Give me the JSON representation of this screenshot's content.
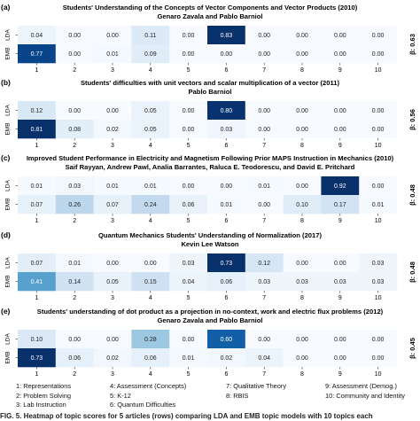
{
  "panels": [
    {
      "letter": "(a)",
      "title": "Students' Understanding of the Concepts of Vector Components and Vector Products (2010)",
      "authors": "Genaro Zavala and Pablo Barniol",
      "beta": "β: 0.63"
    },
    {
      "letter": "(b)",
      "title": "Students' difficulties with unit vectors and scalar multiplication of a vector (2011)",
      "authors": "Pablo Barniol",
      "beta": "β: 0.56"
    },
    {
      "letter": "(c)",
      "title": "Improved Student Performance in Electricity and Magnetism Following Prior MAPS Instruction in Mechanics (2010)",
      "authors": "Saif Rayyan, Andrew Pawl, Analia Barrantes, Raluca E. Teodorescu, and David E. Pritchard",
      "beta": "β: 0.48"
    },
    {
      "letter": "(d)",
      "title": "Quantum Mechanics Students' Understanding of Normalization (2017)",
      "authors": "Kevin Lee Watson",
      "beta": "β: 0.48"
    },
    {
      "letter": "(e)",
      "title": "Students' understanding of dot product as a projection in no-context, work and electric flux problems (2012)",
      "authors": "Genaro Zavala and Pablo Barniol",
      "beta": "β: 0.45"
    }
  ],
  "legend": [
    [
      "1: Representations",
      "2: Problem Solving",
      "3: Lab Instruction"
    ],
    [
      "4: Assessment (Concepts)",
      "5: K-12",
      "6: Quantum Difficulties"
    ],
    [
      "7: Qualitative Theory",
      "8: RBIS"
    ],
    [
      "9: Assessment (Demog.)",
      "10: Community and Identity"
    ]
  ],
  "caption": "FIG. 5. Heatmap of topic scores for 5 articles (rows) comparing LDA and EMB topic models with 10 topics each",
  "chart_data": [
    {
      "type": "heatmap",
      "title": "Students' Understanding of the Concepts of Vector Components and Vector Products (2010)",
      "rows": [
        "LDA",
        "EMB"
      ],
      "x": [
        1,
        2,
        3,
        4,
        5,
        6,
        7,
        8,
        9,
        10
      ],
      "values": [
        [
          0.04,
          0.0,
          0.0,
          0.11,
          0.0,
          0.83,
          0.0,
          0.0,
          0.0,
          0.0
        ],
        [
          0.77,
          0.0,
          0.01,
          0.09,
          0.0,
          0.0,
          0.0,
          0.0,
          0.0,
          0.0
        ]
      ]
    },
    {
      "type": "heatmap",
      "title": "Students' difficulties with unit vectors and scalar multiplication of a vector (2011)",
      "rows": [
        "LDA",
        "EMB"
      ],
      "x": [
        1,
        2,
        3,
        4,
        5,
        6,
        7,
        8,
        9,
        10
      ],
      "values": [
        [
          0.12,
          0.0,
          0.0,
          0.05,
          0.0,
          0.8,
          0.0,
          0.0,
          0.0,
          0.0
        ],
        [
          0.81,
          0.08,
          0.02,
          0.05,
          0.0,
          0.03,
          0.0,
          0.0,
          0.0,
          0.0
        ]
      ]
    },
    {
      "type": "heatmap",
      "title": "Improved Student Performance in Electricity and Magnetism Following Prior MAPS Instruction in Mechanics (2010)",
      "rows": [
        "LDA",
        "EMB"
      ],
      "x": [
        1,
        2,
        3,
        4,
        5,
        6,
        7,
        8,
        9,
        10
      ],
      "values": [
        [
          0.01,
          0.03,
          0.01,
          0.01,
          0.0,
          0.0,
          0.01,
          0.0,
          0.92,
          0.0
        ],
        [
          0.07,
          0.26,
          0.07,
          0.24,
          0.06,
          0.01,
          0.0,
          0.1,
          0.17,
          0.01
        ]
      ]
    },
    {
      "type": "heatmap",
      "title": "Quantum Mechanics Students' Understanding of Normalization (2017)",
      "rows": [
        "LDA",
        "EMB"
      ],
      "x": [
        1,
        2,
        3,
        4,
        5,
        6,
        7,
        8,
        9,
        10
      ],
      "values": [
        [
          0.07,
          0.01,
          0.0,
          0.0,
          0.03,
          0.73,
          0.12,
          0.0,
          0.0,
          0.03
        ],
        [
          0.41,
          0.14,
          0.05,
          0.15,
          0.04,
          0.06,
          0.03,
          0.03,
          0.03,
          0.03
        ]
      ]
    },
    {
      "type": "heatmap",
      "title": "Students' understanding of dot product as a projection in no-context, work and electric flux problems (2012)",
      "rows": [
        "LDA",
        "EMB"
      ],
      "x": [
        1,
        2,
        3,
        4,
        5,
        6,
        7,
        8,
        9,
        10
      ],
      "values": [
        [
          0.1,
          0.0,
          0.0,
          0.28,
          0.0,
          0.6,
          0.0,
          0.0,
          0.0,
          0.0
        ],
        [
          0.73,
          0.06,
          0.02,
          0.06,
          0.01,
          0.02,
          0.04,
          0.0,
          0.0,
          0.0
        ]
      ]
    }
  ]
}
